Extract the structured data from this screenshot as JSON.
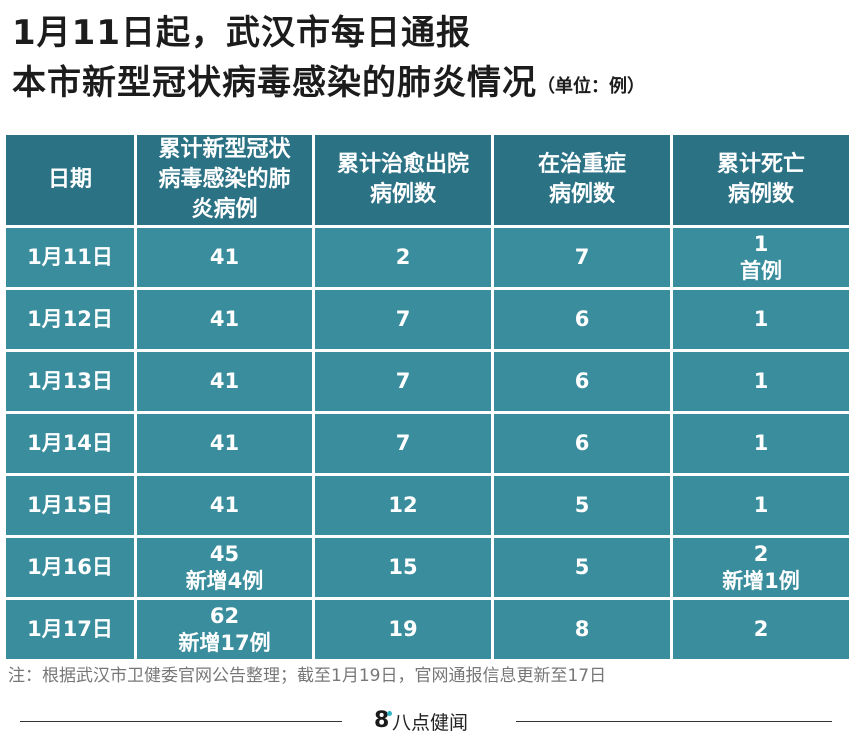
{
  "title": {
    "line1": "1月11日起，武汉市每日通报",
    "line2": "本市新型冠状病毒感染的肺炎情况",
    "unit": "（单位：例）"
  },
  "table": {
    "headers": [
      "日期",
      "累计新型冠状病毒感染的肺炎病例",
      "累计治愈出院病例数",
      "在治重症病例数",
      "累计死亡病例数"
    ],
    "rows": [
      {
        "date": "1月11日",
        "cases": "41",
        "cases_note": "",
        "cured": "2",
        "severe": "7",
        "deaths": "1",
        "deaths_note": "首例"
      },
      {
        "date": "1月12日",
        "cases": "41",
        "cases_note": "",
        "cured": "7",
        "severe": "6",
        "deaths": "1",
        "deaths_note": ""
      },
      {
        "date": "1月13日",
        "cases": "41",
        "cases_note": "",
        "cured": "7",
        "severe": "6",
        "deaths": "1",
        "deaths_note": ""
      },
      {
        "date": "1月14日",
        "cases": "41",
        "cases_note": "",
        "cured": "7",
        "severe": "6",
        "deaths": "1",
        "deaths_note": ""
      },
      {
        "date": "1月15日",
        "cases": "41",
        "cases_note": "",
        "cured": "12",
        "severe": "5",
        "deaths": "1",
        "deaths_note": ""
      },
      {
        "date": "1月16日",
        "cases": "45",
        "cases_note": "新增4例",
        "cured": "15",
        "severe": "5",
        "deaths": "2",
        "deaths_note": "新增1例"
      },
      {
        "date": "1月17日",
        "cases": "62",
        "cases_note": "新增17例",
        "cured": "19",
        "severe": "8",
        "deaths": "2",
        "deaths_note": ""
      }
    ]
  },
  "note": "注：根据武汉市卫健委官网公告整理；截至1月19日，官网通报信息更新至17日",
  "footer": {
    "logo": "8",
    "brand": "八点健闻",
    "accent_color": "#2fb3c4"
  },
  "colors": {
    "header_bg": "#2b7285",
    "cell_bg": "#3a8d9d"
  }
}
